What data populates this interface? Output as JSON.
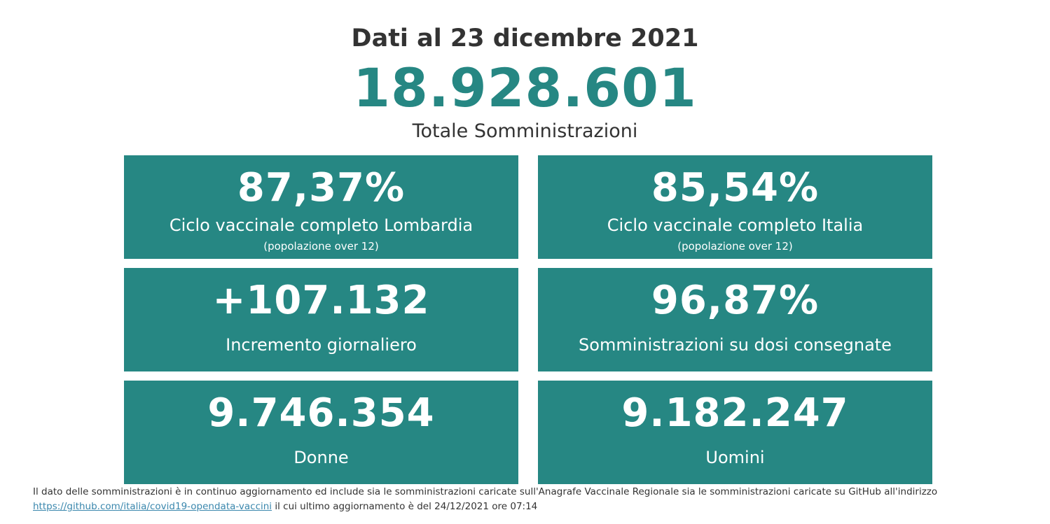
{
  "header": {
    "date_title": "Dati al 23 dicembre 2021",
    "total_value": "18.928.601",
    "total_label": "Totale Somministrazioni"
  },
  "cards": [
    {
      "value": "87,37%",
      "label": "Ciclo vaccinale completo Lombardia",
      "sub": "(popolazione over 12)"
    },
    {
      "value": "85,54%",
      "label": "Ciclo vaccinale completo Italia",
      "sub": "(popolazione over 12)"
    },
    {
      "value": "+107.132",
      "label": "Incremento giornaliero"
    },
    {
      "value": "96,87%",
      "label": "Somministrazioni su dosi consegnate"
    },
    {
      "value": "9.746.354",
      "label": "Donne"
    },
    {
      "value": "9.182.247",
      "label": "Uomini"
    }
  ],
  "footnote": {
    "text_line1": "Il dato delle somministrazioni è in continuo aggiornamento ed include sia le somministrazioni caricate sull'Anagrafe Vaccinale Regionale sia le somministrazioni caricate su GitHub all'indirizzo",
    "link_text": "https://github.com/italia/covid19-opendata-vaccini",
    "text_line2": " il cui ultimo aggiornamento è del 24/12/2021 ore 07:14"
  },
  "colors": {
    "accent": "#268783",
    "text": "#333333",
    "link": "#3a87ad"
  }
}
